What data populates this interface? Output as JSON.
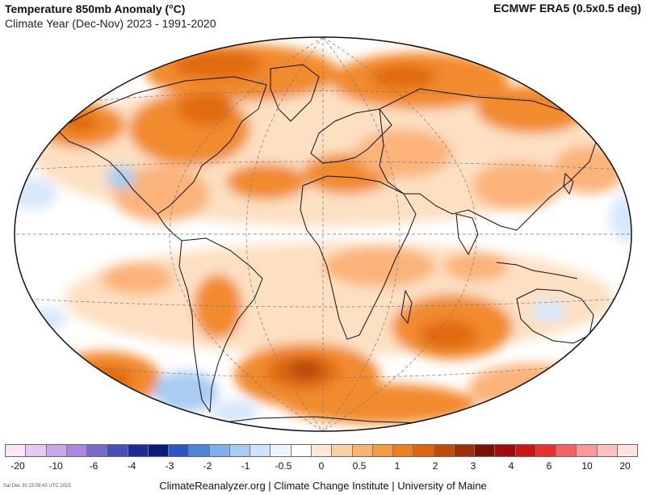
{
  "header": {
    "title": "Temperature 850mb Anomaly (°C)",
    "subtitle": "Climate Year (Dec-Nov) 2023 - 1991-2020",
    "source": "ECMWF ERA5 (0.5x0.5 deg)"
  },
  "map": {
    "projection": "Winkel Tripel",
    "colors": {
      "ocean_base": "#ffffff",
      "warm_light": "#fde0c2",
      "warm_mid": "#fbb37a",
      "warm_strong": "#f28a2e",
      "warm_deep": "#e06a10",
      "warm_max": "#b8480a",
      "cool_light": "#d7e8fb",
      "cool_mid": "#a8ccf2",
      "outline": "#111111",
      "graticule": "#777777"
    }
  },
  "legend": {
    "colors": [
      "#fce6f5",
      "#e8c8f0",
      "#c8a8ea",
      "#a888e0",
      "#7a6acc",
      "#4a4fb8",
      "#1f2a9a",
      "#0d1a7a",
      "#2a58c0",
      "#4d86d8",
      "#7fb0ea",
      "#a8ccf2",
      "#cfe2fb",
      "#eef4fd",
      "#ffffff",
      "#fde8d3",
      "#fbd0a6",
      "#f9b474",
      "#f59a45",
      "#ed7f1f",
      "#dd6410",
      "#c24a0a",
      "#9c2e08",
      "#7a1008",
      "#a00c0c",
      "#cc1414",
      "#e83030",
      "#f66262",
      "#f99a9a",
      "#fbc0c0",
      "#fde2e2"
    ],
    "ticks": [
      "-20",
      "-10",
      "-6",
      "-4",
      "-3",
      "-2",
      "-1",
      "-0.5",
      "0",
      "0.5",
      "1",
      "2",
      "3",
      "4",
      "6",
      "10",
      "20"
    ]
  },
  "footer": {
    "credits": "ClimateReanalyzer.org | Climate Change Institute | University of Maine",
    "timestamp": "Sat Dec 30 23:09:43 UTC 2023"
  }
}
